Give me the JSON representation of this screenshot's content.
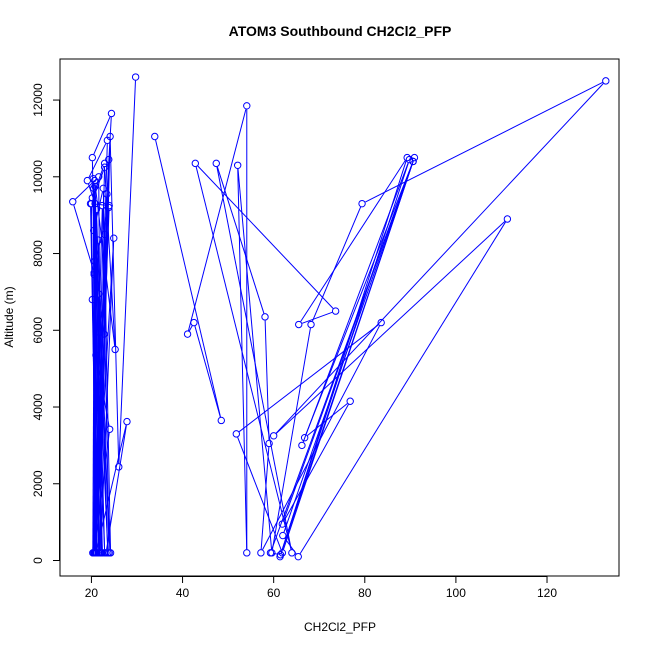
{
  "chart_data": {
    "type": "line",
    "title": "ATOM3 Southbound CH2Cl2_PFP",
    "xlabel": "CH2Cl2_PFP",
    "ylabel": "Altitude (m)",
    "xlim": [
      13.1,
      135.8
    ],
    "ylim": [
      -404,
      13070
    ],
    "x_ticks": [
      20,
      40,
      60,
      80,
      100,
      120
    ],
    "y_ticks": [
      0,
      2000,
      4000,
      6000,
      8000,
      10000,
      12000
    ],
    "grid": false,
    "legend": "none",
    "series_color": "#0000ff",
    "marker": "open-circle",
    "series": [
      {
        "x": [
          29.7,
          26.0,
          24.1,
          21.8,
          20.2,
          24.4,
          23.4,
          21.0,
          20.7,
          25.2,
          22.9,
          20.0,
          21.0,
          23.8,
          20.8,
          22.8,
          21.8,
          20.2,
          22.4,
          20.8,
          19.1,
          23.5,
          20.9,
          20.6,
          15.9,
          21.6,
          22.2,
          20.4,
          20.7,
          24.0,
          21.0,
          20.6,
          20.5,
          21.2,
          19.8,
          23.9,
          21.0,
          21.6,
          20.2,
          22.9,
          20.9,
          23.8,
          21.5,
          21.6,
          24.2,
          22.6,
          20.5,
          23.6,
          21.1,
          20.8,
          24.9,
          22.0,
          21.0,
          27.8,
          23.2,
          20.5,
          21.5,
          23.9,
          22.4,
          20.3,
          20.6,
          22.9,
          20.8,
          21.1,
          22.9
        ],
        "y": [
          12600,
          2440,
          11050,
          200,
          10500,
          11650,
          9550,
          200,
          9900,
          5500,
          10250,
          9300,
          200,
          9200,
          7800,
          5900,
          200,
          6800,
          200,
          9300,
          9900,
          10950,
          200,
          7500,
          9350,
          10000,
          200,
          9950,
          200,
          3420,
          5350,
          200,
          9700,
          200,
          9300,
          9250,
          200,
          6950,
          9450,
          10350,
          200,
          10450,
          200,
          5950,
          200,
          9700,
          8600,
          200,
          9150,
          200,
          8400,
          200,
          200,
          3620,
          200,
          200,
          8350,
          200,
          9250,
          200,
          7450,
          200,
          9750,
          200,
          8500
        ]
      },
      {
        "x": [
          33.9,
          48.5,
          42.5,
          41.1,
          54.1,
          54.1,
          52.1,
          59.6,
          68.2,
          79.4,
          132.9,
          60.0,
          111.3,
          65.4,
          62.0,
          90.9,
          61.4,
          89.3,
          65.5,
          73.6,
          42.8,
          64.0,
          47.4,
          58.1,
          59.0,
          57.2,
          83.6,
          51.8,
          61.9,
          90.6,
          66.8,
          76.8,
          61.9,
          90.6,
          59.3,
          61.5,
          89.8,
          66.2
        ],
        "y": [
          11050,
          3650,
          6200,
          5900,
          11850,
          200,
          10300,
          200,
          6150,
          9300,
          12500,
          3250,
          8900,
          100,
          650,
          10500,
          100,
          10500,
          6150,
          6500,
          10350,
          200,
          10350,
          6350,
          3050,
          200,
          6200,
          3300,
          200,
          10400,
          3200,
          4150,
          950,
          10400,
          200,
          150,
          10450,
          3000
        ]
      }
    ]
  }
}
